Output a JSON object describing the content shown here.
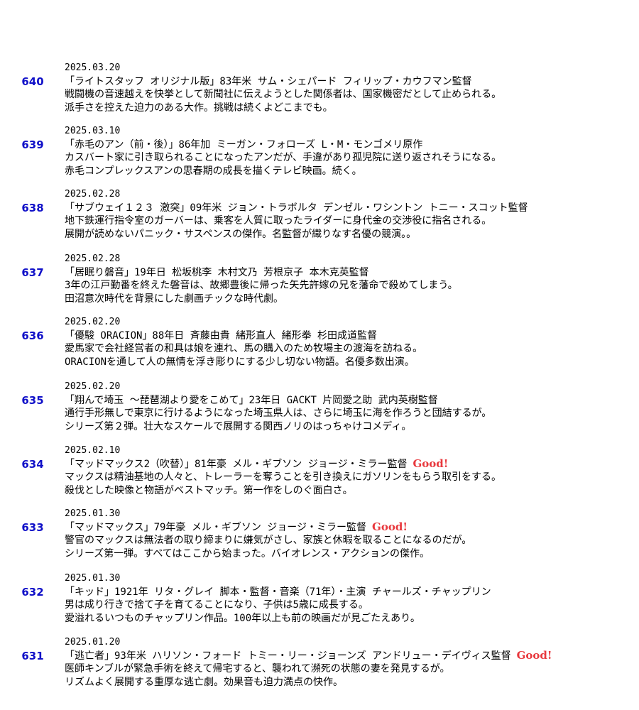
{
  "entries": [
    {
      "number": "640",
      "date": "2025.03.20",
      "title": "「ライトスタッフ オリジナル版」83年米 サム・シェパード フィリップ・カウフマン監督",
      "good": "",
      "desc1": "戦闘機の音速越えを快挙として新聞社に伝えようとした関係者は、国家機密だとして止められる。",
      "desc2": "派手さを控えた迫力のある大作。挑戦は続くよどこまでも。"
    },
    {
      "number": "639",
      "date": "2025.03.10",
      "title": "「赤毛のアン（前・後）」86年加 ミーガン・フォローズ L・M・モンゴメリ原作",
      "good": "",
      "desc1": "カスバート家に引き取られることになったアンだが、手違があり孤児院に送り返されそうになる。",
      "desc2": "赤毛コンプレックスアンの思春期の成長を描くテレビ映画。続く。"
    },
    {
      "number": "638",
      "date": "2025.02.28",
      "title": "「サブウェイ１２３ 激突」09年米 ジョン・トラボルタ デンゼル・ワシントン トニー・スコット監督",
      "good": "",
      "desc1": "地下鉄運行指令室のガーバーは、乗客を人質に取ったライダーに身代金の交渉役に指名される。",
      "desc2": "展開が読めないパニック・サスペンスの傑作。名監督が織りなす名優の競演。。"
    },
    {
      "number": "637",
      "date": "2025.02.28",
      "title": "「居眠り磐音」19年日 松坂桃李 木村文乃 芳根京子 本木克英監督",
      "good": "",
      "desc1": "3年の江戸勤番を終えた磐音は、故郷豊後に帰った矢先許嫁の兄を藩命で殺めてしまう。",
      "desc2": "田沼意次時代を背景にした劇画チックな時代劇。"
    },
    {
      "number": "636",
      "date": "2025.02.20",
      "title": "「優駿 ORACION」88年日 斉藤由貴 緒形直人 緒形拳 杉田成道監督",
      "good": "",
      "desc1": "愛馬家で会社経営者の和具は娘を連れ、馬の購入のため牧場主の渡海を訪ねる。",
      "desc2": "ORACIONを通して人の無情を浮き彫りにする少し切ない物語。名優多数出演。"
    },
    {
      "number": "635",
      "date": "2025.02.20",
      "title": "「翔んで埼玉 ～琵琶湖より愛をこめて」23年日 GACKT 片岡愛之助 武内英樹監督",
      "good": "",
      "desc1": "通行手形無しで東京に行けるようになった埼玉県人は、さらに埼玉に海を作ろうと団結するが。",
      "desc2": "シリーズ第２弾。壮大なスケールで展開する関西ノリのはっちゃけコメディ。"
    },
    {
      "number": "634",
      "date": "2025.02.10",
      "title": "「マッドマックス2（吹替）」81年豪 メル・ギブソン ジョージ・ミラー監督",
      "good": "Good!",
      "desc1": "マックスは精油基地の人々と、トレーラーを奪うことを引き換えにガソリンをもらう取引をする。",
      "desc2": "殺伐とした映像と物語がベストマッチ。第一作をしのぐ面白さ。"
    },
    {
      "number": "633",
      "date": "2025.01.30",
      "title": "「マッドマックス」79年豪 メル・ギブソン ジョージ・ミラー監督",
      "good": "Good!",
      "desc1": "警官のマックスは無法者の取り締まりに嫌気がさし、家族と休暇を取ることになるのだが。",
      "desc2": "シリーズ第一弾。すべてはここから始まった。バイオレンス・アクションの傑作。"
    },
    {
      "number": "632",
      "date": "2025.01.30",
      "title": "「キッド」1921年 リタ・グレイ 脚本・監督・音楽（71年）・主演 チャールズ・チャップリン",
      "good": "",
      "desc1": "男は成り行きで捨て子を育てることになり、子供は5歳に成長する。",
      "desc2": "愛溢れるいつものチャップリン作品。100年以上も前の映画だが見ごたえあり。"
    },
    {
      "number": "631",
      "date": "2025.01.20",
      "title": "「逃亡者」93年米 ハリソン・フォード トミー・リー・ジョーンズ アンドリュー・デイヴィス監督",
      "good": "Good!",
      "desc1": "医師キンブルが緊急手術を終えて帰宅すると、襲われて瀕死の状態の妻を発見するが。",
      "desc2": "リズムよく展開する重厚な逃亡劇。効果音も迫力満点の快作。"
    }
  ]
}
